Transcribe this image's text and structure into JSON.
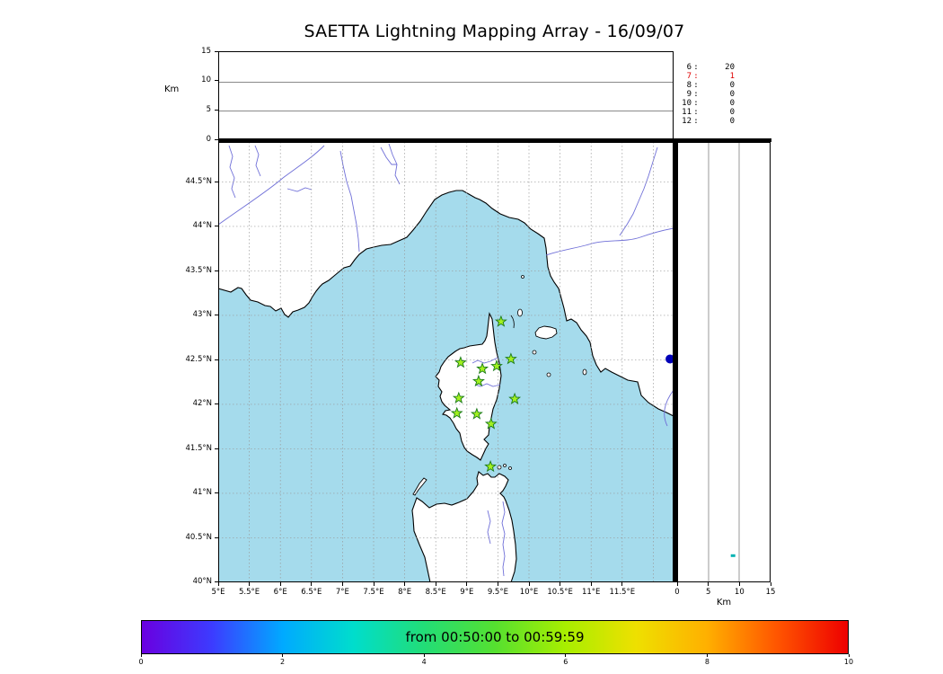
{
  "title": "SAETTA Lightning Mapping Array - 16/09/07",
  "labels": {
    "alt_axis_km": "Km",
    "right_axis_km": "Km"
  },
  "top_panel": {
    "yticks": [
      {
        "label": "15",
        "value": 15
      },
      {
        "label": "10",
        "value": 10
      },
      {
        "label": "5",
        "value": 5
      },
      {
        "label": "0",
        "value": 0
      }
    ]
  },
  "counts": {
    "rows": [
      {
        "station": "6",
        "value": "20",
        "highlight": false
      },
      {
        "station": "7",
        "value": "1",
        "highlight": true
      },
      {
        "station": "8",
        "value": "0",
        "highlight": false
      },
      {
        "station": "9",
        "value": "0",
        "highlight": false
      },
      {
        "station": "10",
        "value": "0",
        "highlight": false
      },
      {
        "station": "11",
        "value": "0",
        "highlight": false
      },
      {
        "station": "12",
        "value": "0",
        "highlight": false
      }
    ]
  },
  "map": {
    "lat_ticks": [
      {
        "label": "44.5°N",
        "value": 44.5
      },
      {
        "label": "44°N",
        "value": 44
      },
      {
        "label": "43.5°N",
        "value": 43.5
      },
      {
        "label": "43°N",
        "value": 43
      },
      {
        "label": "42.5°N",
        "value": 42.5
      },
      {
        "label": "42°N",
        "value": 42
      },
      {
        "label": "41.5°N",
        "value": 41.5
      },
      {
        "label": "41°N",
        "value": 41
      },
      {
        "label": "40.5°N",
        "value": 40.5
      },
      {
        "label": "40°N",
        "value": 40
      }
    ],
    "lon_ticks": [
      {
        "label": "5°E",
        "value": 5
      },
      {
        "label": "5.5°E",
        "value": 5.5
      },
      {
        "label": "6°E",
        "value": 6
      },
      {
        "label": "6.5°E",
        "value": 6.5
      },
      {
        "label": "7°E",
        "value": 7
      },
      {
        "label": "7.5°E",
        "value": 7.5
      },
      {
        "label": "8°E",
        "value": 8
      },
      {
        "label": "8.5°E",
        "value": 8.5
      },
      {
        "label": "9°E",
        "value": 9
      },
      {
        "label": "9.5°E",
        "value": 9.5
      },
      {
        "label": "10°E",
        "value": 10
      },
      {
        "label": "10.5°E",
        "value": 10.5
      },
      {
        "label": "11°E",
        "value": 11
      },
      {
        "label": "11.5°E",
        "value": 11.5
      }
    ]
  },
  "right_panel": {
    "xticks": [
      {
        "label": "0",
        "value": 0
      },
      {
        "label": "5",
        "value": 5
      },
      {
        "label": "10",
        "value": 10
      },
      {
        "label": "15",
        "value": 15
      }
    ]
  },
  "colorbar": {
    "label": "from 00:50:00 to 00:59:59",
    "ticks": [
      {
        "label": "0",
        "value": 0
      },
      {
        "label": "2",
        "value": 2
      },
      {
        "label": "4",
        "value": 4
      },
      {
        "label": "6",
        "value": 6
      },
      {
        "label": "8",
        "value": 8
      },
      {
        "label": "10",
        "value": 10
      }
    ],
    "colors": [
      "#6a00e0",
      "#3c3cff",
      "#00aaff",
      "#00ddcc",
      "#22dd77",
      "#55e030",
      "#a8ee00",
      "#eee000",
      "#ffb000",
      "#ff5500",
      "#ee0000"
    ]
  },
  "chart_data": {
    "type": "scatter",
    "title": "SAETTA Lightning Mapping Array - 16/09/07",
    "time_window": "from 00:50:00 to 00:59:59",
    "map_extent": {
      "lon": [
        5,
        12.33
      ],
      "lat": [
        40,
        44.95
      ]
    },
    "altitude_axis_km": [
      0,
      15
    ],
    "colorbar_range": [
      0,
      10
    ],
    "station_markers_lon_lat": [
      [
        9.55,
        42.93
      ],
      [
        8.9,
        42.47
      ],
      [
        9.25,
        42.4
      ],
      [
        9.48,
        42.43
      ],
      [
        9.71,
        42.51
      ],
      [
        9.19,
        42.26
      ],
      [
        8.87,
        42.07
      ],
      [
        9.77,
        42.06
      ],
      [
        8.84,
        41.9
      ],
      [
        9.16,
        41.89
      ],
      [
        9.39,
        41.78
      ],
      [
        9.38,
        41.3
      ]
    ],
    "event_point": {
      "lon": 12.27,
      "lat": 42.51,
      "color": "#0000b8"
    },
    "right_panel_point": {
      "altitude_km": 9.0,
      "lat": 40.31,
      "color": "#00b2b2"
    },
    "station_source_counts": [
      {
        "station": 6,
        "count": 20
      },
      {
        "station": 7,
        "count": 1
      },
      {
        "station": 8,
        "count": 0
      },
      {
        "station": 9,
        "count": 0
      },
      {
        "station": 10,
        "count": 0
      },
      {
        "station": 11,
        "count": 0
      },
      {
        "station": 12,
        "count": 0
      }
    ]
  }
}
